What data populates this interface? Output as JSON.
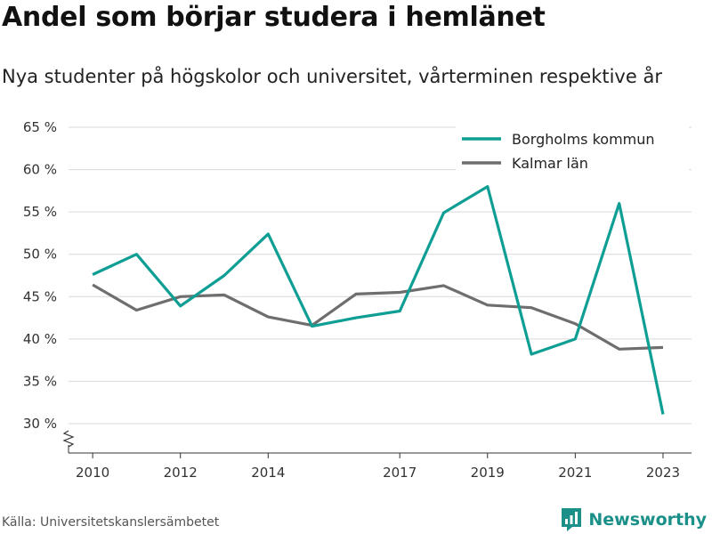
{
  "title": "Andel som börjar studera i hemlänet",
  "subtitle": "Nya studenter på högskolor och universitet, vårterminen respektive år",
  "source": "Källa: Universitetskanslersämbetet",
  "brand": "Newsworthy",
  "colors": {
    "accent": "#0f9e94",
    "secondary": "#6e6e6e",
    "brand": "#1a9088"
  },
  "chart_data": {
    "type": "line",
    "title": "Andel som börjar studera i hemlänet",
    "subtitle": "Nya studenter på högskolor och universitet, vårterminen respektive år",
    "xlabel": "",
    "ylabel": "",
    "x": [
      2010,
      2011,
      2012,
      2013,
      2014,
      2015,
      2016,
      2017,
      2018,
      2019,
      2020,
      2021,
      2022,
      2023
    ],
    "xticks": [
      2010,
      2012,
      2014,
      2017,
      2019,
      2021,
      2023
    ],
    "xtick_labels": [
      "2010",
      "2012",
      "2014",
      "2017",
      "2019",
      "2021",
      "2023"
    ],
    "yticks": [
      30,
      35,
      40,
      45,
      50,
      55,
      60,
      65
    ],
    "ytick_labels": [
      "30 %",
      "35 %",
      "40 %",
      "45 %",
      "50 %",
      "55 %",
      "60 %",
      "65 %"
    ],
    "xlim": [
      2009.45,
      2023.65
    ],
    "ylim": [
      26.5,
      65
    ],
    "y_axis_break": true,
    "grid": true,
    "legend_position": "top-right",
    "series": [
      {
        "name": "Borgholms kommun",
        "color": "#0f9e94",
        "values": [
          47.6,
          50.0,
          43.9,
          47.5,
          52.4,
          41.5,
          42.5,
          43.3,
          54.9,
          58.0,
          38.2,
          40.0,
          56.0,
          31.1
        ]
      },
      {
        "name": "Kalmar län",
        "color": "#6e6e6e",
        "values": [
          46.4,
          43.4,
          45.0,
          45.2,
          42.6,
          41.6,
          45.3,
          45.5,
          46.3,
          44.0,
          43.7,
          41.8,
          38.8,
          39.0
        ]
      }
    ]
  }
}
